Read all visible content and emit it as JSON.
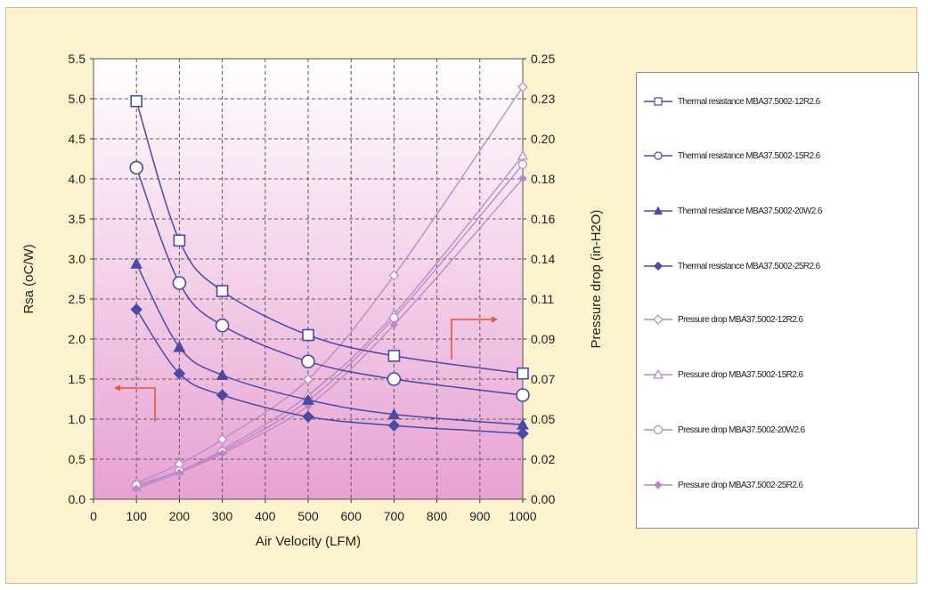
{
  "colors": {
    "background": "#fdf3cf",
    "plot_top": "#ffffff",
    "plot_bottom": "#e7a1d2",
    "thermal_series": "#4a4aa5",
    "pressure_series": "#b888c6",
    "arrows": "#e8543a"
  },
  "chart_data": {
    "type": "line",
    "xlabel": "Air Velocity (LFM)",
    "ylabel": "Rsa (oC/W)",
    "y2label": "Pressure drop (in-H2O)",
    "xlim": [
      0,
      1000
    ],
    "ylim": [
      0,
      5.5
    ],
    "y2lim": [
      0,
      0.25
    ],
    "x_ticks": [
      "0",
      "100",
      "200",
      "300",
      "400",
      "500",
      "600",
      "700",
      "800",
      "900",
      "1000"
    ],
    "y_ticks": [
      "0.0",
      "0.5",
      "1.0",
      "1.5",
      "2.0",
      "2.5",
      "3.0",
      "3.5",
      "4.0",
      "4.5",
      "5.0",
      "5.5"
    ],
    "y2_ticks": [
      "0.00",
      "0.02",
      "0.05",
      "0.07",
      "0.09",
      "0.11",
      "0.14",
      "0.16",
      "0.18",
      "0.20",
      "0.23",
      "0.25"
    ],
    "grid": true,
    "legend_position": "right",
    "x": [
      100,
      200,
      300,
      500,
      700,
      1000
    ],
    "series": [
      {
        "name": "Thermal resistance MBA37.5002-12R2.6",
        "axis": "left",
        "marker": "square",
        "values": [
          4.97,
          3.23,
          2.6,
          2.05,
          1.79,
          1.57
        ]
      },
      {
        "name": "Thermal resistance MBA37.5002-15R2.6",
        "axis": "left",
        "marker": "circle",
        "values": [
          4.14,
          2.7,
          2.17,
          1.72,
          1.5,
          1.3
        ]
      },
      {
        "name": "Thermal resistance MBA37.5002-20W2.6",
        "axis": "left",
        "marker": "triangle",
        "values": [
          2.94,
          1.9,
          1.55,
          1.24,
          1.06,
          0.93
        ]
      },
      {
        "name": "Thermal resistance MBA37.5002-25R2.6",
        "axis": "left",
        "marker": "diamond",
        "values": [
          2.37,
          1.57,
          1.3,
          1.03,
          0.92,
          0.82
        ]
      },
      {
        "name": "Pressure drop MBA37.5002-12R2.6",
        "axis": "right",
        "marker": "diamond-open",
        "values": [
          0.009,
          0.02,
          0.034,
          0.068,
          0.127,
          0.234
        ]
      },
      {
        "name": "Pressure drop MBA37.5002-15R2.6",
        "axis": "right",
        "marker": "triangle-open",
        "values": [
          0.007,
          0.016,
          0.028,
          0.059,
          0.105,
          0.195
        ]
      },
      {
        "name": "Pressure drop MBA37.5002-20W2.6",
        "axis": "right",
        "marker": "circle-open",
        "values": [
          0.008,
          0.016,
          0.027,
          0.056,
          0.103,
          0.19
        ]
      },
      {
        "name": "Pressure drop MBA37.5002-25R2.6",
        "axis": "right",
        "marker": "diamond-small",
        "values": [
          0.006,
          0.015,
          0.026,
          0.053,
          0.099,
          0.182
        ]
      }
    ]
  }
}
